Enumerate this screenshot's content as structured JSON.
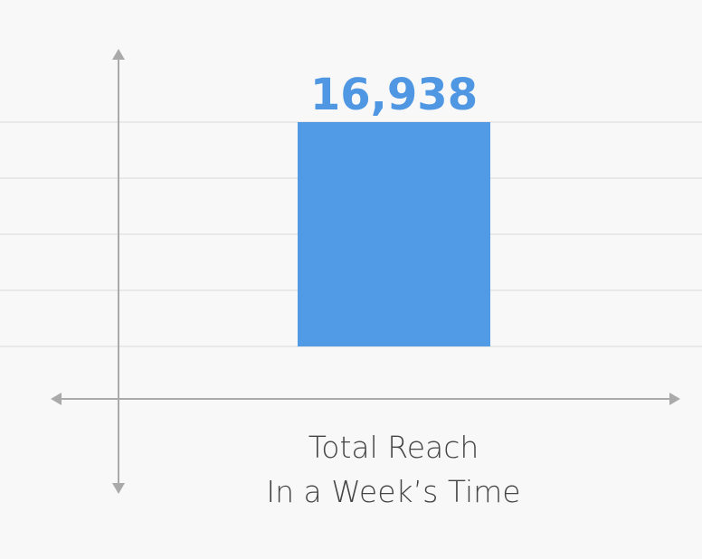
{
  "chart_data": {
    "type": "bar",
    "categories": [
      "Total Reach\nIn a Week’s Time"
    ],
    "values": [
      16938
    ],
    "value_labels": [
      "16,938"
    ],
    "color": "#519ae5",
    "ylim": [
      0,
      16938
    ],
    "grid": true
  }
}
